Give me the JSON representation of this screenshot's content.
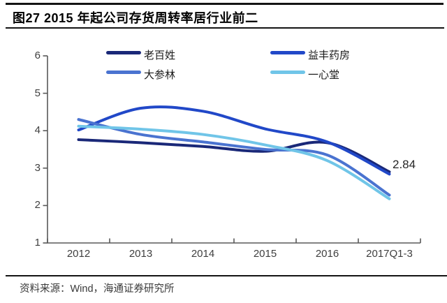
{
  "title": {
    "text": "图27 2015 年起公司存货周转率居行业前二"
  },
  "footer": {
    "source": "资料来源：Wind，海通证券研究所"
  },
  "colors": {
    "laobaixing": "#1a2878",
    "yifeng": "#2148c8",
    "dashenlin": "#4a73d0",
    "yixintang": "#70c5e8",
    "axis": "#595959",
    "title_text": "#000000",
    "rule": "#141414"
  },
  "chart_data": {
    "type": "line",
    "categories": [
      "2012",
      "2013",
      "2014",
      "2015",
      "2016",
      "2017Q1-3"
    ],
    "series": [
      {
        "name": "老百姓",
        "color": "#1a2878",
        "values": [
          3.76,
          3.68,
          3.58,
          3.45,
          3.68,
          2.9
        ]
      },
      {
        "name": "益丰药房",
        "color": "#2148c8",
        "values": [
          4.02,
          4.6,
          4.52,
          4.05,
          3.7,
          2.84
        ]
      },
      {
        "name": "大参林",
        "color": "#4a73d0",
        "values": [
          4.3,
          3.9,
          3.7,
          3.5,
          3.35,
          2.28
        ]
      },
      {
        "name": "一心堂",
        "color": "#70c5e8",
        "values": [
          4.12,
          4.04,
          3.9,
          3.62,
          3.2,
          2.18
        ]
      }
    ],
    "ylim": [
      1,
      6
    ],
    "yticks": [
      1,
      2,
      3,
      4,
      5,
      6
    ],
    "grid": false,
    "legend_position": "top-inside",
    "annotations": [
      {
        "text": "2.84",
        "series": "益丰药房",
        "category": "2017Q1-3"
      }
    ]
  }
}
